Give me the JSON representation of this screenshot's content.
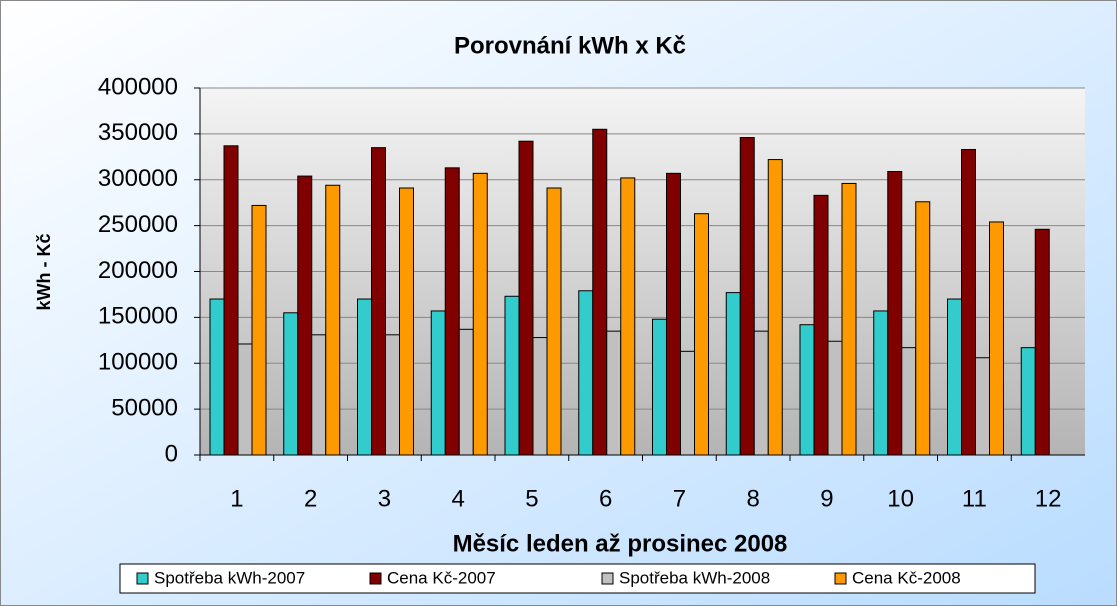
{
  "chart_data": {
    "type": "bar",
    "title": "Porovnání kWh x Kč",
    "x_label": "Měsíc leden až prosinec 2008",
    "y_label": "kWh - Kč",
    "categories": [
      "1",
      "2",
      "3",
      "4",
      "5",
      "6",
      "7",
      "8",
      "9",
      "10",
      "11",
      "12"
    ],
    "series": [
      {
        "name": "Spotřeba kWh-2007",
        "color": "#33cccc",
        "values": [
          170000,
          155000,
          170000,
          157000,
          173000,
          179000,
          148000,
          177000,
          142000,
          157000,
          170000,
          117000
        ]
      },
      {
        "name": "Cena Kč-2007",
        "color": "#800000",
        "values": [
          337000,
          304000,
          335000,
          313000,
          342000,
          355000,
          307000,
          346000,
          283000,
          309000,
          333000,
          246000
        ]
      },
      {
        "name": "Spotřeba kWh-2008",
        "color": "#c0c0c0",
        "values": [
          121000,
          131000,
          131000,
          137000,
          128000,
          135000,
          113000,
          135000,
          124000,
          117000,
          106000,
          null
        ]
      },
      {
        "name": "Cena Kč-2008",
        "color": "#ff9900",
        "values": [
          272000,
          294000,
          291000,
          307000,
          291000,
          302000,
          263000,
          322000,
          296000,
          276000,
          254000,
          null
        ]
      }
    ],
    "ylim": [
      0,
      400000
    ],
    "yticks": [
      0,
      50000,
      100000,
      150000,
      200000,
      250000,
      300000,
      350000,
      400000
    ],
    "grid": true,
    "legend": "bottom"
  }
}
